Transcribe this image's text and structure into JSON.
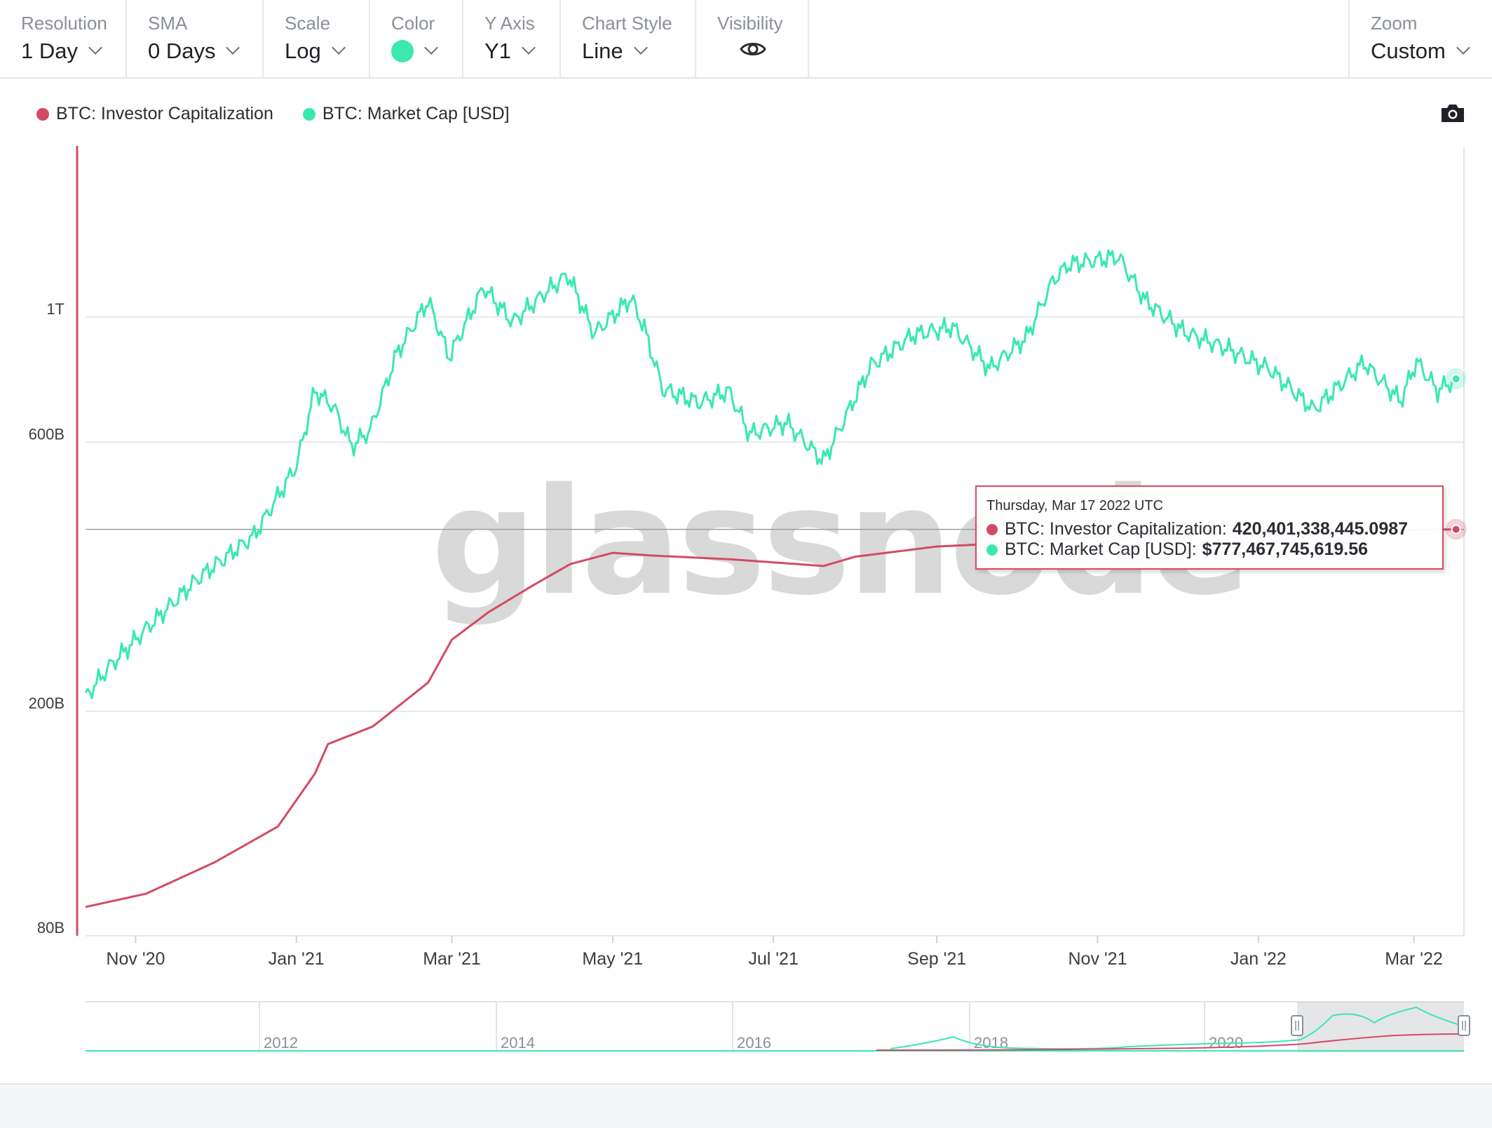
{
  "toolbar": {
    "resolution": {
      "label": "Resolution",
      "value": "1 Day"
    },
    "sma": {
      "label": "SMA",
      "value": "0 Days"
    },
    "scale": {
      "label": "Scale",
      "value": "Log"
    },
    "color": {
      "label": "Color",
      "value": "#3ae8b0"
    },
    "y_axis": {
      "label": "Y Axis",
      "value": "Y1"
    },
    "chart_style": {
      "label": "Chart Style",
      "value": "Line"
    },
    "visibility": {
      "label": "Visibility",
      "icon": "eye-icon"
    },
    "zoom": {
      "label": "Zoom",
      "value": "Custom"
    }
  },
  "legend": [
    {
      "label": "BTC: Investor Capitalization",
      "color": "#d44a64"
    },
    {
      "label": "BTC: Market Cap [USD]",
      "color": "#3ae8b0"
    }
  ],
  "watermark": "glassnode",
  "tooltip": {
    "date": "Thursday, Mar 17 2022 UTC",
    "rows": [
      {
        "label": "BTC: Investor Capitalization:",
        "value": "420,401,338,445.0987",
        "color": "#d44a64"
      },
      {
        "label": "BTC: Market Cap [USD]:",
        "value": "$777,467,745,619.56",
        "color": "#3ae8b0"
      }
    ]
  },
  "navigator": {
    "years": [
      "2012",
      "2014",
      "2016",
      "2018",
      "2020"
    ]
  },
  "chart_data": {
    "type": "line",
    "y_scale": "log",
    "ylim": [
      80000000000,
      2000000000000
    ],
    "y_ticks": [
      {
        "value": 1000000000000,
        "label": "1T"
      },
      {
        "value": 600000000000,
        "label": "600B"
      },
      {
        "value": 200000000000,
        "label": "200B"
      },
      {
        "value": 80000000000,
        "label": "80B"
      }
    ],
    "x_ticks": [
      {
        "date": "2020-11-01",
        "label": "Nov '20"
      },
      {
        "date": "2021-01-01",
        "label": "Jan '21"
      },
      {
        "date": "2021-03-01",
        "label": "Mar '21"
      },
      {
        "date": "2021-05-01",
        "label": "May '21"
      },
      {
        "date": "2021-07-01",
        "label": "Jul '21"
      },
      {
        "date": "2021-09-01",
        "label": "Sep '21"
      },
      {
        "date": "2021-11-01",
        "label": "Nov '21"
      },
      {
        "date": "2022-01-01",
        "label": "Jan '22"
      },
      {
        "date": "2022-03-01",
        "label": "Mar '22"
      }
    ],
    "xlim": [
      "2020-10-13",
      "2022-03-20"
    ],
    "series": [
      {
        "name": "BTC: Market Cap [USD]",
        "color": "#3ae8b0",
        "points": [
          [
            "2020-10-13",
            212000000000.0
          ],
          [
            "2020-10-22",
            240000000000.0
          ],
          [
            "2020-11-05",
            280000000000.0
          ],
          [
            "2020-11-25",
            345000000000.0
          ],
          [
            "2020-12-16",
            410000000000.0
          ],
          [
            "2021-01-01",
            545000000000.0
          ],
          [
            "2021-01-08",
            740000000000.0
          ],
          [
            "2021-01-15",
            695000000000.0
          ],
          [
            "2021-01-22",
            590000000000.0
          ],
          [
            "2021-01-29",
            630000000000.0
          ],
          [
            "2021-02-08",
            860000000000.0
          ],
          [
            "2021-02-20",
            1070000000000.0
          ],
          [
            "2021-02-28",
            850000000000.0
          ],
          [
            "2021-03-13",
            1130000000000.0
          ],
          [
            "2021-03-24",
            980000000000.0
          ],
          [
            "2021-04-05",
            1100000000000.0
          ],
          [
            "2021-04-14",
            1190000000000.0
          ],
          [
            "2021-04-24",
            935000000000.0
          ],
          [
            "2021-05-08",
            1080000000000.0
          ],
          [
            "2021-05-13",
            955000000000.0
          ],
          [
            "2021-05-20",
            745000000000.0
          ],
          [
            "2021-06-03",
            705000000000.0
          ],
          [
            "2021-06-14",
            740000000000.0
          ],
          [
            "2021-06-22",
            620000000000.0
          ],
          [
            "2021-07-06",
            650000000000.0
          ],
          [
            "2021-07-20",
            555000000000.0
          ],
          [
            "2021-08-07",
            820000000000.0
          ],
          [
            "2021-08-23",
            930000000000.0
          ],
          [
            "2021-09-07",
            960000000000.0
          ],
          [
            "2021-09-21",
            810000000000.0
          ],
          [
            "2021-10-05",
            920000000000.0
          ],
          [
            "2021-10-15",
            1160000000000.0
          ],
          [
            "2021-10-21",
            1240000000000.0
          ],
          [
            "2021-11-09",
            1280000000000.0
          ],
          [
            "2021-11-19",
            1070000000000.0
          ],
          [
            "2021-12-04",
            940000000000.0
          ],
          [
            "2021-12-20",
            880000000000.0
          ],
          [
            "2022-01-05",
            810000000000.0
          ],
          [
            "2022-01-22",
            685000000000.0
          ],
          [
            "2022-02-10",
            830000000000.0
          ],
          [
            "2022-02-24",
            710000000000.0
          ],
          [
            "2022-03-02",
            835000000000.0
          ],
          [
            "2022-03-10",
            740000000000.0
          ],
          [
            "2022-03-17",
            777000000000.0
          ]
        ]
      },
      {
        "name": "BTC: Investor Capitalization",
        "color": "#d44a64",
        "points": [
          [
            "2020-10-13",
            90000000000.0
          ],
          [
            "2020-11-05",
            95000000000.0
          ],
          [
            "2020-12-01",
            108000000000.0
          ],
          [
            "2020-12-25",
            125000000000.0
          ],
          [
            "2021-01-08",
            155000000000.0
          ],
          [
            "2021-01-13",
            175000000000.0
          ],
          [
            "2021-01-30",
            188000000000.0
          ],
          [
            "2021-02-20",
            225000000000.0
          ],
          [
            "2021-03-01",
            268000000000.0
          ],
          [
            "2021-03-15",
            300000000000.0
          ],
          [
            "2021-04-01",
            335000000000.0
          ],
          [
            "2021-04-15",
            365000000000.0
          ],
          [
            "2021-05-01",
            382000000000.0
          ],
          [
            "2021-05-15",
            378000000000.0
          ],
          [
            "2021-06-15",
            372000000000.0
          ],
          [
            "2021-07-20",
            362000000000.0
          ],
          [
            "2021-08-01",
            376000000000.0
          ],
          [
            "2021-09-01",
            392000000000.0
          ],
          [
            "2021-10-01",
            398000000000.0
          ],
          [
            "2021-11-01",
            408000000000.0
          ],
          [
            "2022-01-01",
            416000000000.0
          ],
          [
            "2022-03-17",
            420400000000.0
          ]
        ]
      }
    ]
  }
}
